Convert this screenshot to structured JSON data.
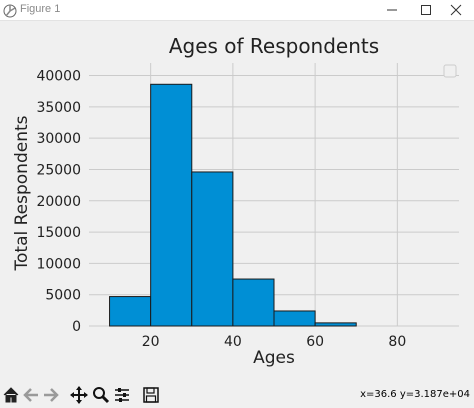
{
  "window": {
    "title": "Figure 1",
    "icons": {
      "app": "matplotlib-logo-icon",
      "minimize": "minimize-icon",
      "maximize": "maximize-icon",
      "close": "close-icon"
    }
  },
  "toolbar": {
    "buttons": [
      {
        "name": "home-icon"
      },
      {
        "name": "back-arrow-icon"
      },
      {
        "name": "forward-arrow-icon"
      },
      {
        "name": "pan-move-icon"
      },
      {
        "name": "zoom-magnifier-icon"
      },
      {
        "name": "configure-subplots-icon"
      },
      {
        "name": "save-disk-icon"
      }
    ],
    "coordinates": "x=36.6 y=3.187e+04"
  },
  "colors": {
    "bar": "#008fd5",
    "axes_bg": "#f0f0f0",
    "grid": "#cbcbcb"
  },
  "chart_data": {
    "type": "bar",
    "title": "Ages of Respondents",
    "xlabel": "Ages",
    "ylabel": "Total Respondents",
    "bins": [
      [
        10,
        20
      ],
      [
        20,
        30
      ],
      [
        30,
        40
      ],
      [
        40,
        50
      ],
      [
        50,
        60
      ],
      [
        60,
        70
      ]
    ],
    "values": [
      4700,
      38600,
      24600,
      7500,
      2400,
      500
    ],
    "xlim": [
      5,
      95
    ],
    "ylim": [
      0,
      42000
    ],
    "xticks": [
      "20",
      "40",
      "60",
      "80"
    ],
    "xtick_values": [
      20,
      40,
      60,
      80
    ],
    "yticks": [
      "0",
      "5000",
      "10000",
      "15000",
      "20000",
      "25000",
      "30000",
      "35000",
      "40000"
    ],
    "ytick_values": [
      0,
      5000,
      10000,
      15000,
      20000,
      25000,
      30000,
      35000,
      40000
    ],
    "grid": true,
    "legend": "top-right (empty)"
  }
}
